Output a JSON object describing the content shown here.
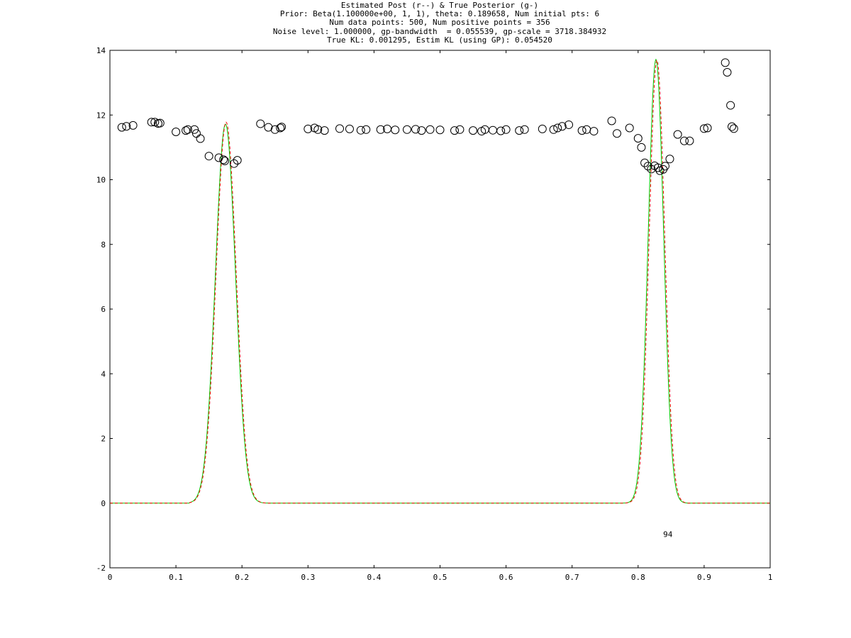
{
  "chart_data": {
    "type": "line",
    "title_lines": [
      "Estimated Post (r--) & True Posterior (g-)",
      "Prior: Beta(1.100000e+00, 1, 1), theta: 0.189658, Num initial pts: 6",
      "Num data points: 500, Num positive points = 356",
      "Noise level: 1.000000, gp-bandwidth  = 0.055539, gp-scale = 3718.384932",
      "True KL: 0.001295, Estim KL (using GP): 0.054520"
    ],
    "xlabel": "",
    "ylabel": "",
    "xlim": [
      0,
      1
    ],
    "ylim": [
      -2,
      14
    ],
    "xticks": [
      "0",
      "0.1",
      "0.2",
      "0.3",
      "0.4",
      "0.5",
      "0.6",
      "0.7",
      "0.8",
      "0.9",
      "1"
    ],
    "yticks": [
      "-2",
      "0",
      "2",
      "4",
      "6",
      "8",
      "10",
      "12",
      "14"
    ],
    "grid": false,
    "annotation": {
      "text": "94",
      "x": 0.838,
      "y": -1.05
    },
    "series": [
      {
        "style": "red dashed",
        "color": "#ff0000",
        "peaks": [
          {
            "center": 0.176,
            "height": 11.78,
            "width": 0.0152,
            "start": 0.12,
            "end": 0.24
          },
          {
            "center": 0.8285,
            "height": 13.7,
            "width": 0.0117,
            "start": 0.76,
            "end": 0.875
          }
        ]
      },
      {
        "style": "green solid",
        "color": "#00cc00",
        "peaks": [
          {
            "center": 0.175,
            "height": 11.72,
            "width": 0.0152,
            "start": 0.12,
            "end": 0.24
          },
          {
            "center": 0.827,
            "height": 13.72,
            "width": 0.0117,
            "start": 0.76,
            "end": 0.875
          }
        ]
      }
    ],
    "scatter": {
      "marker": "open circle",
      "color": "#000000",
      "points": [
        [
          0.018,
          11.62
        ],
        [
          0.025,
          11.65
        ],
        [
          0.035,
          11.68
        ],
        [
          0.063,
          11.78
        ],
        [
          0.068,
          11.78
        ],
        [
          0.073,
          11.74
        ],
        [
          0.076,
          11.75
        ],
        [
          0.1,
          11.48
        ],
        [
          0.115,
          11.52
        ],
        [
          0.118,
          11.55
        ],
        [
          0.128,
          11.55
        ],
        [
          0.131,
          11.43
        ],
        [
          0.137,
          11.27
        ],
        [
          0.15,
          10.73
        ],
        [
          0.165,
          10.68
        ],
        [
          0.172,
          10.62
        ],
        [
          0.174,
          10.58
        ],
        [
          0.188,
          10.5
        ],
        [
          0.193,
          10.6
        ],
        [
          0.228,
          11.73
        ],
        [
          0.24,
          11.62
        ],
        [
          0.25,
          11.55
        ],
        [
          0.258,
          11.6
        ],
        [
          0.26,
          11.63
        ],
        [
          0.3,
          11.57
        ],
        [
          0.31,
          11.6
        ],
        [
          0.315,
          11.55
        ],
        [
          0.325,
          11.52
        ],
        [
          0.348,
          11.58
        ],
        [
          0.363,
          11.57
        ],
        [
          0.38,
          11.53
        ],
        [
          0.388,
          11.55
        ],
        [
          0.41,
          11.55
        ],
        [
          0.42,
          11.57
        ],
        [
          0.432,
          11.54
        ],
        [
          0.45,
          11.55
        ],
        [
          0.463,
          11.56
        ],
        [
          0.472,
          11.52
        ],
        [
          0.485,
          11.55
        ],
        [
          0.5,
          11.54
        ],
        [
          0.522,
          11.52
        ],
        [
          0.53,
          11.55
        ],
        [
          0.55,
          11.52
        ],
        [
          0.563,
          11.5
        ],
        [
          0.568,
          11.55
        ],
        [
          0.58,
          11.53
        ],
        [
          0.592,
          11.51
        ],
        [
          0.6,
          11.55
        ],
        [
          0.62,
          11.52
        ],
        [
          0.628,
          11.55
        ],
        [
          0.655,
          11.57
        ],
        [
          0.672,
          11.55
        ],
        [
          0.678,
          11.6
        ],
        [
          0.685,
          11.65
        ],
        [
          0.695,
          11.7
        ],
        [
          0.715,
          11.52
        ],
        [
          0.722,
          11.55
        ],
        [
          0.733,
          11.5
        ],
        [
          0.76,
          11.82
        ],
        [
          0.768,
          11.43
        ],
        [
          0.787,
          11.6
        ],
        [
          0.8,
          11.28
        ],
        [
          0.805,
          11.0
        ],
        [
          0.81,
          10.52
        ],
        [
          0.815,
          10.42
        ],
        [
          0.82,
          10.33
        ],
        [
          0.825,
          10.43
        ],
        [
          0.83,
          10.37
        ],
        [
          0.833,
          10.28
        ],
        [
          0.838,
          10.32
        ],
        [
          0.841,
          10.42
        ],
        [
          0.848,
          10.64
        ],
        [
          0.86,
          11.4
        ],
        [
          0.87,
          11.2
        ],
        [
          0.878,
          11.2
        ],
        [
          0.9,
          11.58
        ],
        [
          0.905,
          11.6
        ],
        [
          0.932,
          13.62
        ],
        [
          0.935,
          13.32
        ],
        [
          0.94,
          12.3
        ],
        [
          0.942,
          11.64
        ],
        [
          0.945,
          11.58
        ]
      ]
    }
  }
}
